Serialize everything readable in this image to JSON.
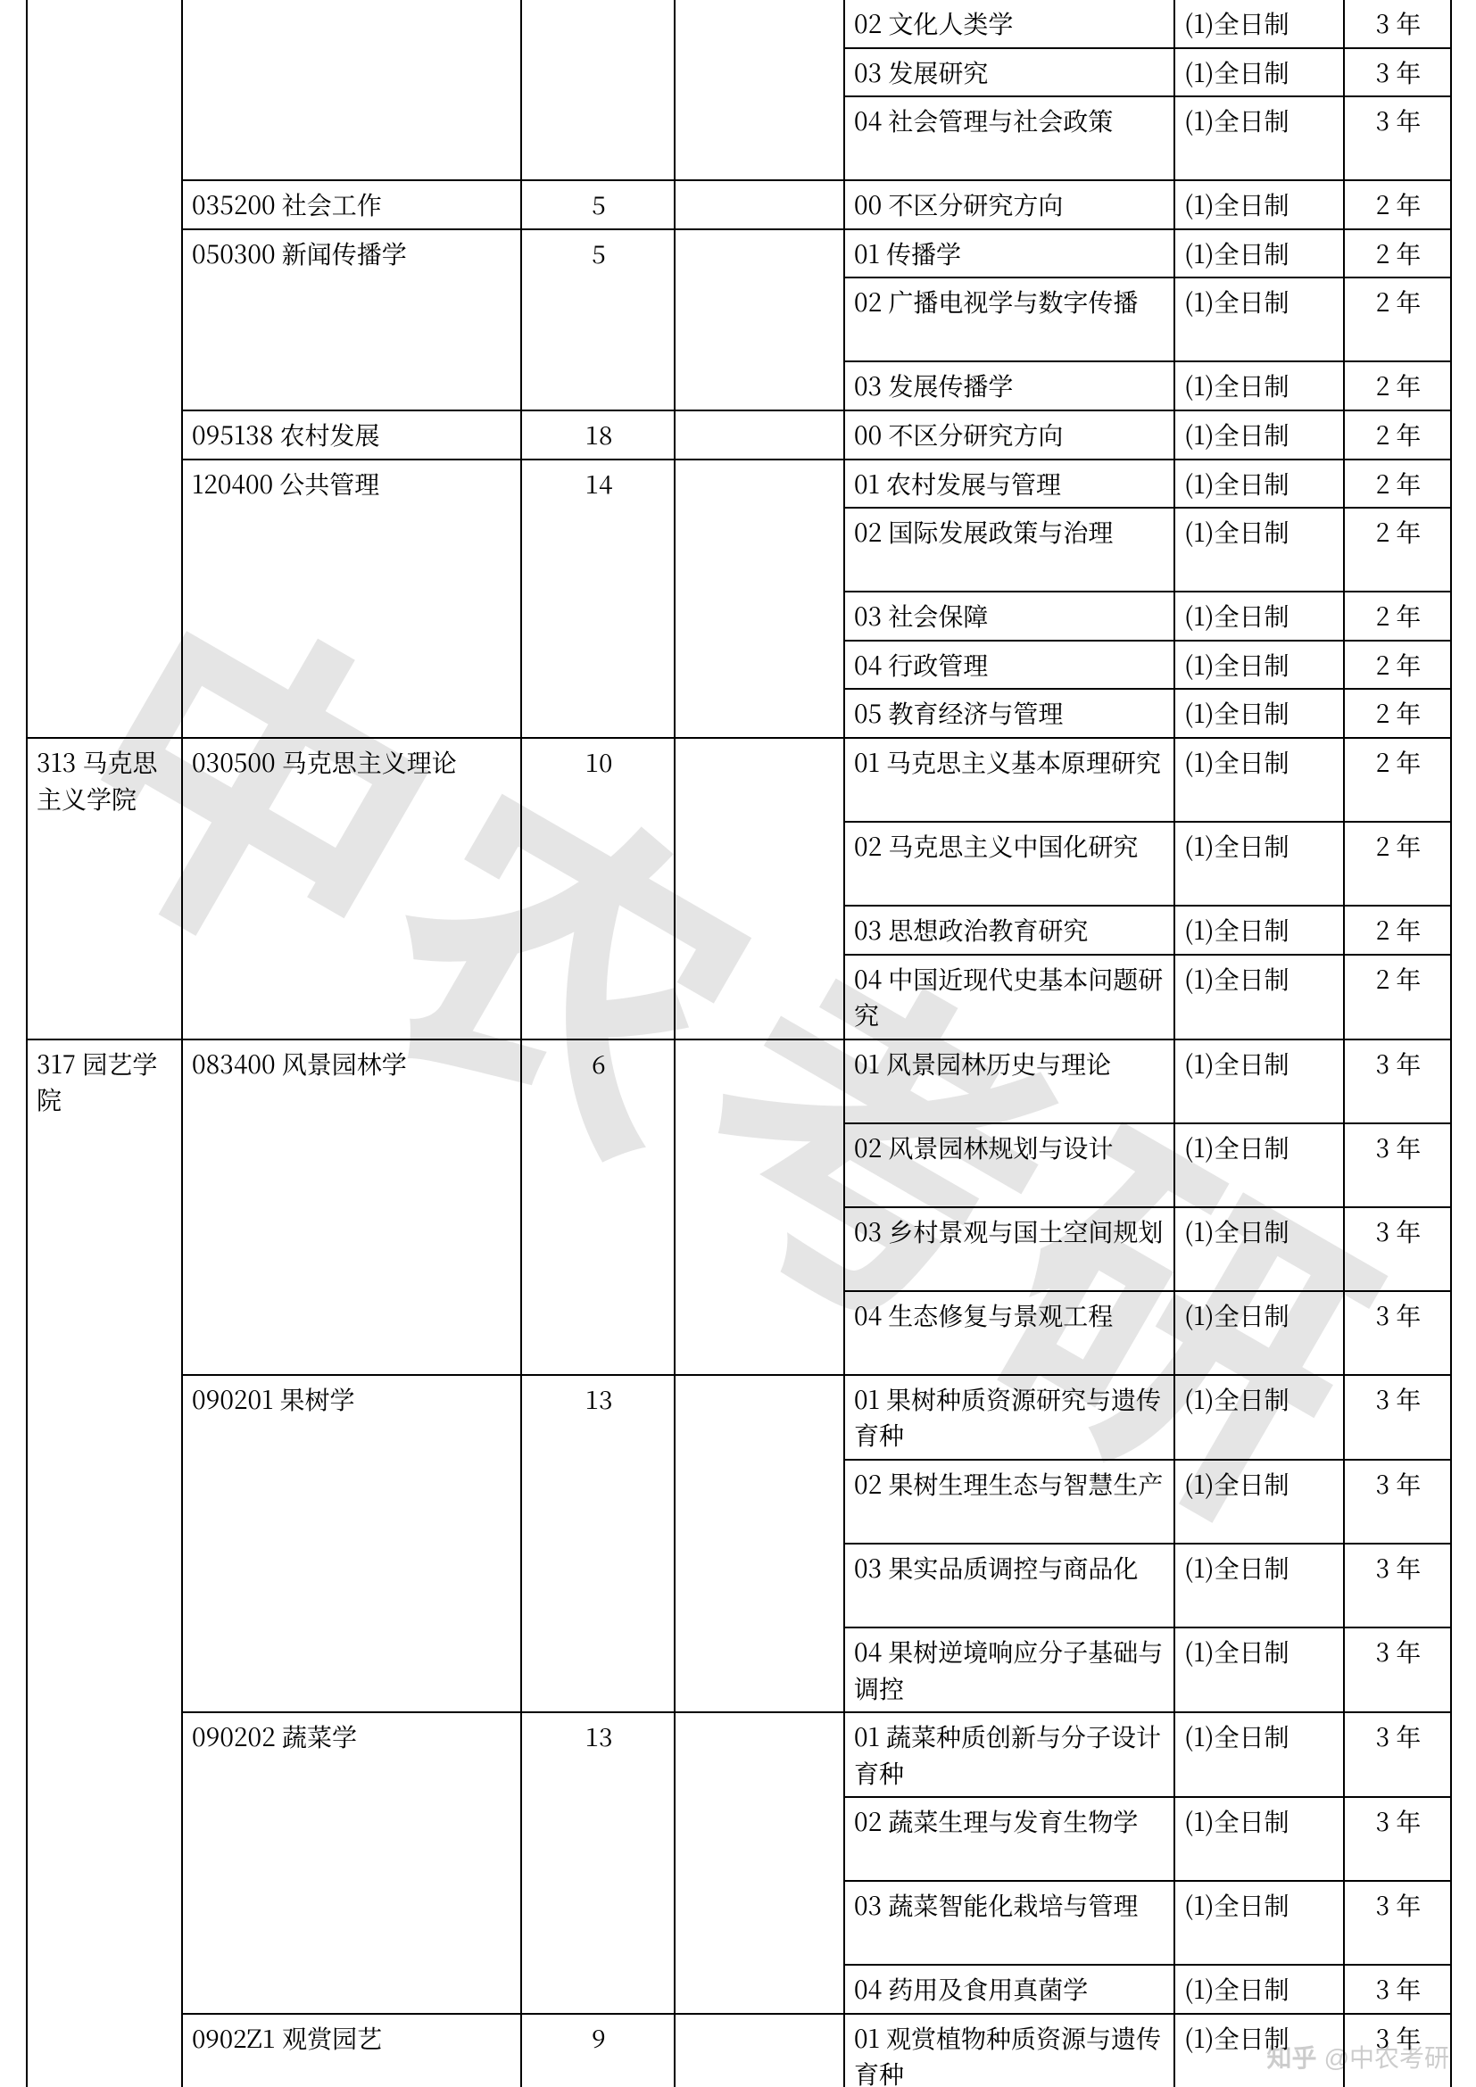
{
  "watermark": "中农考研",
  "zhihu_credit": "知乎 @中农考研",
  "columns": [
    "college",
    "major",
    "quota",
    "blank",
    "direction",
    "mode",
    "years"
  ],
  "mode_fulltime": "(1)全日制",
  "rows": [
    {
      "c0": "",
      "c1": "",
      "c2": "",
      "c3": "",
      "c4": "02 文化人类学",
      "c5": "(1)全日制",
      "c6": "3 年",
      "skip_top": [
        "c0",
        "c1",
        "c2",
        "c3"
      ]
    },
    {
      "c0": "",
      "c1": "",
      "c2": "",
      "c3": "",
      "c4": "03 发展研究",
      "c5": "(1)全日制",
      "c6": "3 年"
    },
    {
      "c0": "",
      "c1": "",
      "c2": "",
      "c3": "",
      "c4": "04 社会管理与社会政策",
      "c5": "(1)全日制",
      "c6": "3 年",
      "tall": true
    },
    {
      "c0": "",
      "c1": "035200 社会工作",
      "c2": "5",
      "c3": "",
      "c4": "00 不区分研究方向",
      "c5": "(1)全日制",
      "c6": "2 年",
      "major_rowspan": 1,
      "quota_rowspan": 1,
      "blank_rowspan": 1
    },
    {
      "c0": "",
      "c1": "050300 新闻传播学",
      "c2": "5",
      "c3": "",
      "c4": "01 传播学",
      "c5": "(1)全日制",
      "c6": "2 年",
      "major_rowspan": 3,
      "quota_rowspan": 3,
      "blank_rowspan": 3
    },
    {
      "c4": "02 广播电视学与数字传播",
      "c5": "(1)全日制",
      "c6": "2 年",
      "tall": true
    },
    {
      "c4": "03 发展传播学",
      "c5": "(1)全日制",
      "c6": "2 年"
    },
    {
      "c0": "",
      "c1": "095138 农村发展",
      "c2": "18",
      "c3": "",
      "c4": "00 不区分研究方向",
      "c5": "(1)全日制",
      "c6": "2 年",
      "major_rowspan": 1,
      "quota_rowspan": 1,
      "blank_rowspan": 1
    },
    {
      "c0": "",
      "c1": "120400 公共管理",
      "c2": "14",
      "c3": "",
      "c4": "01 农村发展与管理",
      "c5": "(1)全日制",
      "c6": "2 年",
      "major_rowspan": 5,
      "quota_rowspan": 5,
      "blank_rowspan": 5
    },
    {
      "c4": "02 国际发展政策与治理",
      "c5": "(1)全日制",
      "c6": "2 年",
      "tall": true
    },
    {
      "c4": "03 社会保障",
      "c5": "(1)全日制",
      "c6": "2 年"
    },
    {
      "c4": "04 行政管理",
      "c5": "(1)全日制",
      "c6": "2 年"
    },
    {
      "c4": "05 教育经济与管理",
      "c5": "(1)全日制",
      "c6": "2 年"
    },
    {
      "c0": "313 马克思主义学院",
      "c1": "030500 马克思主义理论",
      "c2": "10",
      "c3": "",
      "c4": "01 马克思主义基本原理研究",
      "c5": "(1)全日制",
      "c6": "2 年",
      "college_rowspan": 4,
      "major_rowspan": 4,
      "quota_rowspan": 4,
      "blank_rowspan": 4,
      "tall": true
    },
    {
      "c4": "02 马克思主义中国化研究",
      "c5": "(1)全日制",
      "c6": "2 年",
      "tall": true
    },
    {
      "c4": "03 思想政治教育研究",
      "c5": "(1)全日制",
      "c6": "2 年"
    },
    {
      "c4": "04 中国近现代史基本问题研究",
      "c5": "(1)全日制",
      "c6": "2 年",
      "tall": true
    },
    {
      "c0": "317 园艺学院",
      "c1": "083400 风景园林学",
      "c2": "6",
      "c3": "",
      "c4": "01 风景园林历史与理论",
      "c5": "(1)全日制",
      "c6": "3 年",
      "college_rowspan": 14,
      "major_rowspan": 4,
      "quota_rowspan": 4,
      "blank_rowspan": 4,
      "tall": true
    },
    {
      "c4": "02 风景园林规划与设计",
      "c5": "(1)全日制",
      "c6": "3 年",
      "tall": true
    },
    {
      "c4": "03 乡村景观与国土空间规划",
      "c5": "(1)全日制",
      "c6": "3 年",
      "tall": true
    },
    {
      "c4": "04 生态修复与景观工程",
      "c5": "(1)全日制",
      "c6": "3 年",
      "tall": true
    },
    {
      "c1": "090201 果树学",
      "c2": "13",
      "c3": "",
      "c4": "01 果树种质资源研究与遗传育种",
      "c5": "(1)全日制",
      "c6": "3 年",
      "major_rowspan": 4,
      "quota_rowspan": 4,
      "blank_rowspan": 4,
      "tall": true
    },
    {
      "c4": "02 果树生理生态与智慧生产",
      "c5": "(1)全日制",
      "c6": "3 年",
      "tall": true
    },
    {
      "c4": "03 果实品质调控与商品化",
      "c5": "(1)全日制",
      "c6": "3 年",
      "tall": true
    },
    {
      "c4": "04 果树逆境响应分子基础与调控",
      "c5": "(1)全日制",
      "c6": "3 年",
      "tall": true
    },
    {
      "c1": "090202 蔬菜学",
      "c2": "13",
      "c3": "",
      "c4": "01 蔬菜种质创新与分子设计育种",
      "c5": "(1)全日制",
      "c6": "3 年",
      "major_rowspan": 4,
      "quota_rowspan": 4,
      "blank_rowspan": 4,
      "tall": true
    },
    {
      "c4": "02 蔬菜生理与发育生物学",
      "c5": "(1)全日制",
      "c6": "3 年",
      "tall": true
    },
    {
      "c4": "03 蔬菜智能化栽培与管理",
      "c5": "(1)全日制",
      "c6": "3 年",
      "tall": true
    },
    {
      "c4": "04 药用及食用真菌学",
      "c5": "(1)全日制",
      "c6": "3 年"
    },
    {
      "c1": "0902Z1 观赏园艺",
      "c2": "9",
      "c3": "",
      "c4": "01 观赏植物种质资源与遗传育种",
      "c5": "(1)全日制",
      "c6": "3 年",
      "major_rowspan": 2,
      "quota_rowspan": 2,
      "blank_rowspan": 2,
      "tall": true
    },
    {
      "c4": "",
      "c5": "",
      "c6": "",
      "phantom": true
    }
  ],
  "style": {
    "font_family": "SimSun",
    "font_size_pt": 10.5,
    "border_color": "#000000",
    "text_color": "#000000",
    "background_color": "#ffffff",
    "watermark_color": "rgba(0,0,0,0.10)"
  }
}
